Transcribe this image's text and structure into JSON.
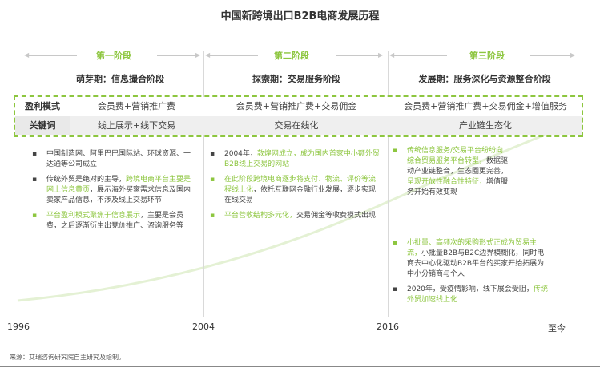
{
  "title": "中国新跨境出口B2B电商发展历程",
  "colors": {
    "accent": "#8dc63f",
    "text": "#333333",
    "grid": "#d9d9d9"
  },
  "stages": [
    {
      "label": "第一阶段",
      "phase": "萌芽期：信息撮合阶段"
    },
    {
      "label": "第二阶段",
      "phase": "探索期：交易服务阶段"
    },
    {
      "label": "第三阶段",
      "phase": "发展期：服务深化与资源整合阶段"
    }
  ],
  "table": {
    "rows": [
      {
        "header": "盈利模式",
        "cells": [
          "会员费+营销推广费",
          "会员费+营销推广费+交易佣金",
          "会员费+营销推广费+交易佣金+增值服务"
        ]
      },
      {
        "header": "关键词",
        "cells": [
          "线上展示+线下交易",
          "交易在线化",
          "产业链生态化"
        ]
      }
    ]
  },
  "columns": [
    {
      "bullets": [
        {
          "parts": [
            {
              "text": "中国制造网、阿里巴巴国际站、环球资源、一达通等公司成立",
              "green": false
            }
          ]
        },
        {
          "parts": [
            {
              "text": "传统外贸是绝对的主导，",
              "green": false
            },
            {
              "text": "跨境电商平台主要是网上信息黄页",
              "green": true
            },
            {
              "text": "，展示海外买家需求信息及国内卖家产品信息，不涉及线上交易环节",
              "green": false
            }
          ]
        },
        {
          "parts": [
            {
              "text": "平台盈利模式聚焦于信息展示",
              "green": true
            },
            {
              "text": "，主要是会员费，之后逐渐衍生出竞价推广、咨询服务等",
              "green": false
            }
          ]
        }
      ]
    },
    {
      "bullets": [
        {
          "parts": [
            {
              "text": "2004年，",
              "green": false
            },
            {
              "text": "敦煌网成立，成为国内首家中小额外贸B2B线上交易的网站",
              "green": true
            }
          ]
        },
        {
          "parts": [
            {
              "text": "在此阶段跨境电商逐步将支付、物流、评价等流程线上化",
              "green": true
            },
            {
              "text": "，依托互联网金融行业发展，逐步实现在线交易",
              "green": false
            }
          ]
        },
        {
          "parts": [
            {
              "text": "平台营收结构多元化，",
              "green": true
            },
            {
              "text": "交易佣金等收费模式出现",
              "green": false
            }
          ]
        }
      ]
    },
    {
      "bullets": [
        {
          "parts": [
            {
              "text": "传统信息服务/交易平台纷纷向综合贸易服务平台转型，",
              "green": true
            },
            {
              "text": "数据驱动产业链整合，生态圈更完善，",
              "green": false
            },
            {
              "text": "呈现开放性融合性特征，",
              "green": true
            },
            {
              "text": "增值服务开始有效变现",
              "green": false
            }
          ]
        }
      ]
    },
    {
      "bullets": [
        {
          "parts": [
            {
              "text": "小批量、高频次的采购形式正成为贸易主流，",
              "green": true
            },
            {
              "text": "小批量B2B与B2C边界模糊化，同时电商去中心化驱动B2B平台的买家开始拓展为中小分销商与个人",
              "green": false
            }
          ]
        },
        {
          "parts": [
            {
              "text": "2020年，受疫情影响，线下展会受阻，",
              "green": false
            },
            {
              "text": "传统外贸加速线上化",
              "green": true
            }
          ]
        }
      ]
    }
  ],
  "timeline": {
    "ticks": [
      "1996",
      "2004",
      "2016",
      "至今"
    ]
  },
  "source": "来源：艾瑞咨询研究院自主研究及绘制。"
}
